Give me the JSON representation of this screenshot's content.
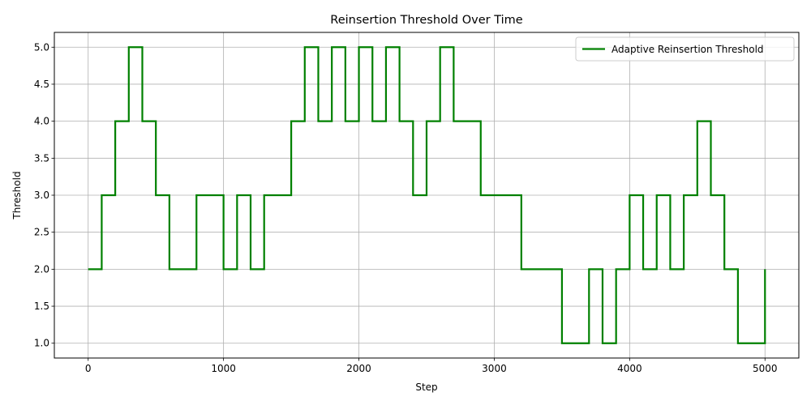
{
  "chart_data": {
    "type": "line",
    "title": "Reinsertion Threshold Over Time",
    "xlabel": "Step",
    "ylabel": "Threshold",
    "xlim": [
      -250,
      5250
    ],
    "ylim": [
      0.8,
      5.2
    ],
    "x_ticks": [
      0,
      1000,
      2000,
      3000,
      4000,
      5000
    ],
    "x_tick_labels": [
      "0",
      "1000",
      "2000",
      "3000",
      "4000",
      "5000"
    ],
    "y_ticks": [
      1.0,
      1.5,
      2.0,
      2.5,
      3.0,
      3.5,
      4.0,
      4.5,
      5.0
    ],
    "y_tick_labels": [
      "1.0",
      "1.5",
      "2.0",
      "2.5",
      "3.0",
      "3.5",
      "4.0",
      "4.5",
      "5.0"
    ],
    "grid": true,
    "legend_position": "top-right",
    "series": [
      {
        "name": "Adaptive Reinsertion Threshold",
        "color": "#008000",
        "step": "post",
        "x": [
          0,
          100,
          200,
          300,
          400,
          500,
          600,
          700,
          800,
          900,
          1000,
          1100,
          1200,
          1300,
          1400,
          1500,
          1600,
          1700,
          1800,
          1900,
          2000,
          2100,
          2200,
          2300,
          2400,
          2500,
          2600,
          2700,
          2800,
          2900,
          3000,
          3100,
          3200,
          3300,
          3400,
          3500,
          3600,
          3700,
          3800,
          3900,
          4000,
          4100,
          4200,
          4300,
          4400,
          4500,
          4600,
          4700,
          4800,
          4900,
          5000
        ],
        "y": [
          2,
          3,
          4,
          5,
          4,
          3,
          2,
          2,
          3,
          3,
          2,
          3,
          2,
          3,
          3,
          4,
          5,
          4,
          5,
          4,
          5,
          4,
          5,
          4,
          3,
          4,
          5,
          4,
          4,
          3,
          3,
          3,
          2,
          2,
          2,
          1,
          1,
          2,
          1,
          2,
          3,
          2,
          3,
          2,
          3,
          4,
          3,
          2,
          1,
          1,
          2
        ]
      }
    ]
  }
}
